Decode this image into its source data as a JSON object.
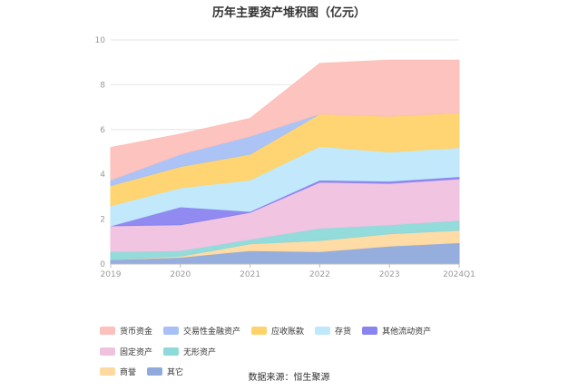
{
  "chart_data": {
    "type": "area",
    "stacked": true,
    "title": "历年主要资产堆积图（亿元）",
    "categories": [
      "2019",
      "2020",
      "2021",
      "2022",
      "2023",
      "2024Q1"
    ],
    "ylim": [
      0,
      10
    ],
    "yticks": [
      "0",
      "2",
      "4",
      "6",
      "8",
      "10"
    ],
    "grid": true,
    "legend_position": "bottom",
    "series": [
      {
        "name": "其它",
        "color": "#8faadc",
        "values": [
          0.2,
          0.3,
          0.6,
          0.55,
          0.8,
          0.95
        ]
      },
      {
        "name": "商誉",
        "color": "#ffd9a0",
        "values": [
          0.0,
          0.05,
          0.3,
          0.5,
          0.55,
          0.55
        ]
      },
      {
        "name": "无形资产",
        "color": "#8ed9d9",
        "values": [
          0.35,
          0.25,
          0.2,
          0.55,
          0.4,
          0.45
        ]
      },
      {
        "name": "固定资产",
        "color": "#f0c2e0",
        "values": [
          1.15,
          1.15,
          1.2,
          2.05,
          1.85,
          1.85
        ]
      },
      {
        "name": "其他流动资产",
        "color": "#8a84f0",
        "values": [
          0.0,
          0.8,
          0.05,
          0.1,
          0.1,
          0.1
        ]
      },
      {
        "name": "存货",
        "color": "#bfe8fb",
        "values": [
          0.9,
          0.85,
          1.4,
          1.5,
          1.3,
          1.3
        ]
      },
      {
        "name": "应收账款",
        "color": "#ffd36b",
        "values": [
          0.9,
          0.95,
          1.15,
          1.45,
          1.6,
          1.55
        ]
      },
      {
        "name": "交易性金融资产",
        "color": "#a8c0f5",
        "values": [
          0.25,
          0.55,
          0.8,
          0.0,
          0.0,
          0.0
        ]
      },
      {
        "name": "货币资金",
        "color": "#fdc0bb",
        "values": [
          1.45,
          0.9,
          0.8,
          2.25,
          2.5,
          2.35
        ]
      }
    ],
    "legend_order": [
      "货币资金",
      "交易性金融资产",
      "应收账款",
      "存货",
      "其他流动资产",
      "固定资产",
      "无形资产",
      "商誉",
      "其它"
    ]
  },
  "source": "数据来源：恒生聚源"
}
